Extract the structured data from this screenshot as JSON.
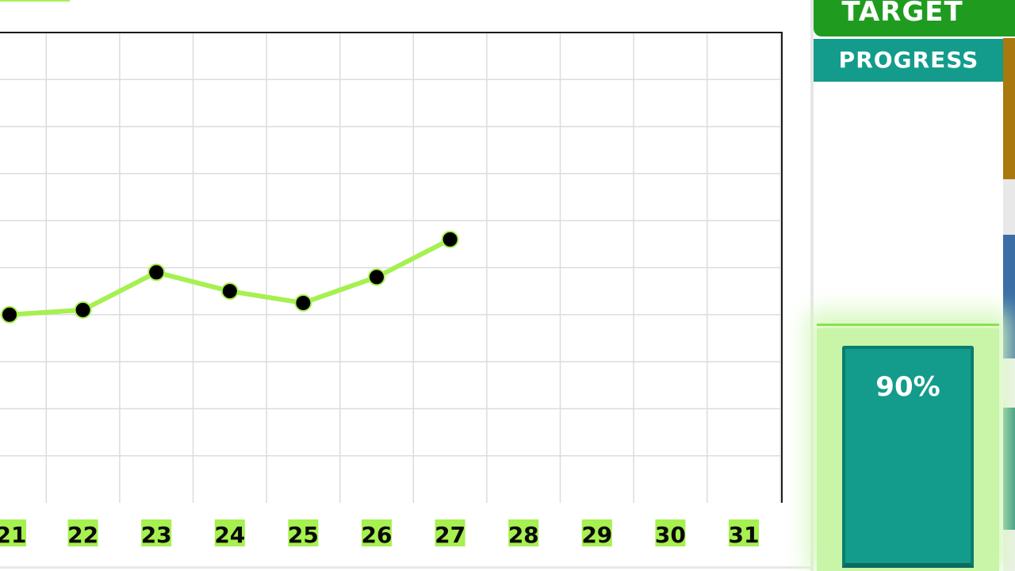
{
  "chart_data": {
    "type": "line",
    "categories": [
      "21",
      "22",
      "23",
      "24",
      "25",
      "26",
      "27",
      "28",
      "29",
      "30",
      "31"
    ],
    "series": [
      {
        "values": [
          40,
          41,
          49,
          45,
          42.5,
          48,
          56,
          null,
          null,
          null,
          null
        ]
      }
    ],
    "ylim": [
      0,
      100
    ],
    "y_gridlines": 10,
    "grid": true,
    "line_color": "#a6f050",
    "point_color": "#000000"
  },
  "panel": {
    "target_label": "TARGET",
    "progress_label": "PROGRESS",
    "progress_value": 0.9,
    "progress_text": "90%",
    "bar_color": "#139c8b",
    "target_color": "#1f9c1f"
  }
}
